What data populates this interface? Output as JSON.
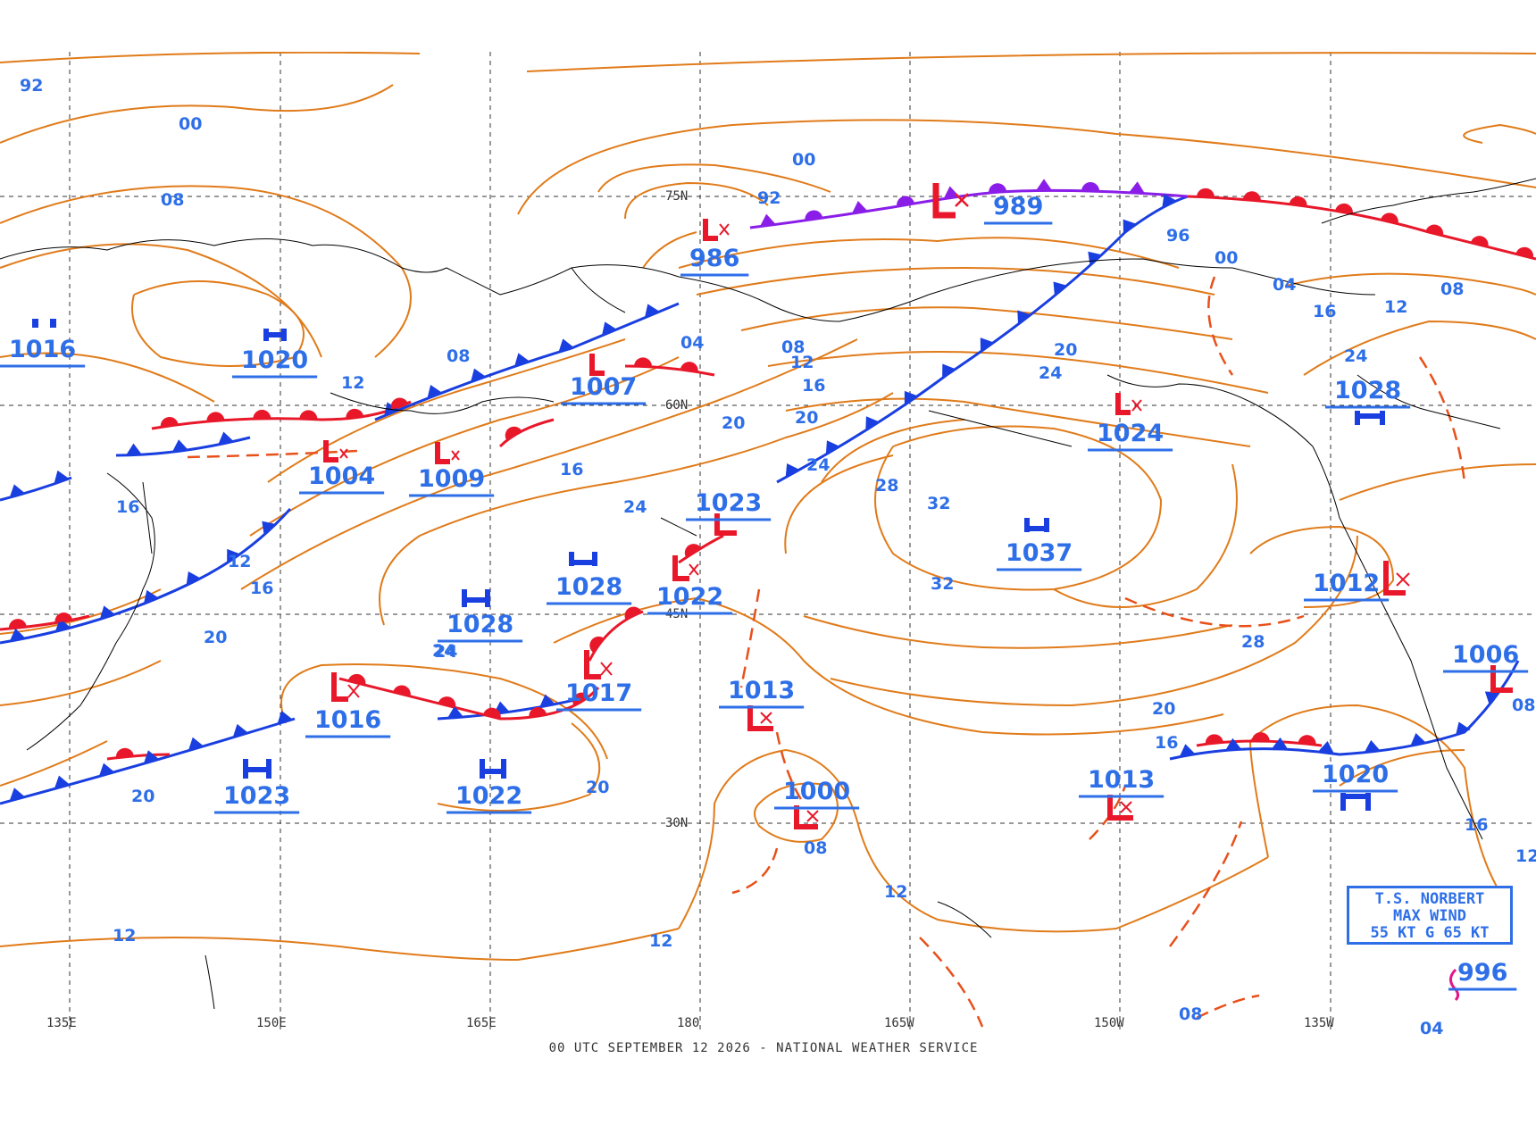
{
  "footer_caption": "00 UTC SEPTEMBER 12 2026 - NATIONAL WEATHER SERVICE",
  "storm_box": {
    "line1": "T.S. NORBERT",
    "line2": "MAX WIND",
    "line3": "55 KT G 65 KT"
  },
  "latitude_labels": [
    "75N",
    "60N",
    "45N",
    "30N"
  ],
  "longitude_labels": [
    "135E",
    "150E",
    "165E",
    "180",
    "165W",
    "150W",
    "135W"
  ],
  "colors": {
    "isobar": "#e07b1a",
    "label_blue": "#2e6fe8",
    "cold_front": "#1a3fe0",
    "warm_front": "#e8182a",
    "occluded_front": "#8a1ee8",
    "trough": "#e8501a",
    "coastline": "#000000",
    "grid": "#333333"
  },
  "isobar_labels": [
    {
      "text": "92",
      "icon": "label"
    },
    {
      "text": "00",
      "icon": "label"
    },
    {
      "text": "08",
      "icon": "label"
    },
    {
      "text": "12",
      "icon": "label"
    },
    {
      "text": "16",
      "icon": "label"
    },
    {
      "text": "20",
      "icon": "label"
    },
    {
      "text": "24",
      "icon": "label"
    },
    {
      "text": "28",
      "icon": "label"
    },
    {
      "text": "32",
      "icon": "label"
    },
    {
      "text": "96",
      "icon": "label"
    },
    {
      "text": "04",
      "icon": "label"
    },
    {
      "text": "00",
      "icon": "label"
    },
    {
      "text": "92",
      "icon": "label"
    },
    {
      "text": "08",
      "icon": "label"
    },
    {
      "text": "12",
      "icon": "label"
    },
    {
      "text": "16",
      "icon": "label"
    },
    {
      "text": "20",
      "icon": "label"
    },
    {
      "text": "24",
      "icon": "label"
    },
    {
      "text": "08",
      "icon": "label"
    },
    {
      "text": "12",
      "icon": "label"
    },
    {
      "text": "16",
      "icon": "label"
    },
    {
      "text": "20",
      "icon": "label"
    },
    {
      "text": "24",
      "icon": "label"
    },
    {
      "text": "20",
      "icon": "label"
    },
    {
      "text": "20",
      "icon": "label"
    },
    {
      "text": "16",
      "icon": "label"
    },
    {
      "text": "12",
      "icon": "label"
    },
    {
      "text": "12",
      "icon": "label"
    },
    {
      "text": "12",
      "icon": "label"
    },
    {
      "text": "08",
      "icon": "label"
    },
    {
      "text": "08",
      "icon": "label"
    },
    {
      "text": "04",
      "icon": "label"
    },
    {
      "text": "16",
      "icon": "label"
    },
    {
      "text": "20",
      "icon": "label"
    },
    {
      "text": "24",
      "icon": "label"
    },
    {
      "text": "28",
      "icon": "label"
    },
    {
      "text": "32",
      "icon": "label"
    },
    {
      "text": "24",
      "icon": "label"
    },
    {
      "text": "20",
      "icon": "label"
    },
    {
      "text": "16",
      "icon": "label"
    },
    {
      "text": "12",
      "icon": "label"
    },
    {
      "text": "08",
      "icon": "label"
    },
    {
      "text": "04",
      "icon": "label"
    },
    {
      "text": "16",
      "icon": "label"
    },
    {
      "text": "12",
      "icon": "label"
    },
    {
      "text": "08",
      "icon": "label"
    },
    {
      "text": "00",
      "icon": "label"
    },
    {
      "text": "24",
      "icon": "label"
    }
  ],
  "pressure_centers": [
    {
      "type": "L",
      "value": "986"
    },
    {
      "type": "L",
      "value": "989"
    },
    {
      "type": "L",
      "value": "1007"
    },
    {
      "type": "L",
      "value": "1004"
    },
    {
      "type": "L",
      "value": "1009"
    },
    {
      "type": "L",
      "value": "1023"
    },
    {
      "type": "L",
      "value": "1022"
    },
    {
      "type": "L",
      "value": "1017"
    },
    {
      "type": "L",
      "value": "1016"
    },
    {
      "type": "L",
      "value": "1013"
    },
    {
      "type": "L",
      "value": "1000"
    },
    {
      "type": "L",
      "value": "1013"
    },
    {
      "type": "L",
      "value": "1024"
    },
    {
      "type": "L",
      "value": "1012"
    },
    {
      "type": "L",
      "value": "1006"
    },
    {
      "type": "H",
      "value": "1016"
    },
    {
      "type": "H",
      "value": "1020"
    },
    {
      "type": "H",
      "value": "1028"
    },
    {
      "type": "H",
      "value": "1028"
    },
    {
      "type": "H",
      "value": "1023"
    },
    {
      "type": "H",
      "value": "1022"
    },
    {
      "type": "H",
      "value": "1037"
    },
    {
      "type": "H",
      "value": "1028"
    },
    {
      "type": "H",
      "value": "1020"
    },
    {
      "type": "TS",
      "value": "996"
    }
  ]
}
